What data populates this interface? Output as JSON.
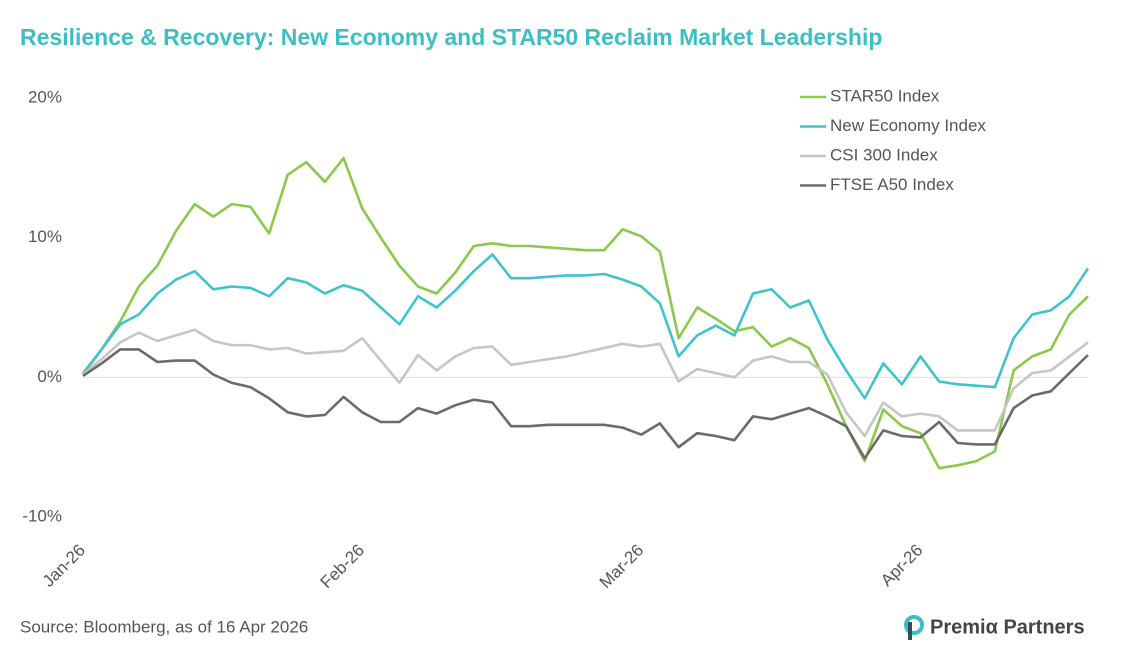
{
  "chart_data": {
    "type": "line",
    "title": "Resilience & Recovery: New Economy and STAR50 Reclaim Market Leadership",
    "categories": [
      "Jan-26",
      null,
      null,
      null,
      null,
      null,
      null,
      null,
      null,
      null,
      null,
      null,
      null,
      null,
      null,
      "Feb-26",
      null,
      null,
      null,
      null,
      null,
      null,
      null,
      null,
      null,
      null,
      null,
      null,
      null,
      null,
      "Mar-26",
      null,
      null,
      null,
      null,
      null,
      null,
      null,
      null,
      null,
      null,
      null,
      null,
      null,
      null,
      "Apr-26",
      null,
      null,
      null,
      null,
      null,
      null,
      null,
      null,
      null
    ],
    "series": [
      {
        "name": "STAR50 Index",
        "color": "#8cc84b",
        "values": [
          0.3,
          2,
          4,
          6.5,
          8,
          10.5,
          12.4,
          11.5,
          12.4,
          12.2,
          10.3,
          14.5,
          15.4,
          14,
          15.7,
          12.1,
          10,
          8,
          6.5,
          6,
          7.5,
          9.4,
          9.6,
          9.4,
          9.4,
          9.3,
          9.2,
          9.1,
          9.1,
          10.6,
          10.1,
          9,
          2.8,
          5,
          4.2,
          3.3,
          3.6,
          2.2,
          2.8,
          2.1,
          -0.5,
          -3.5,
          -6,
          -2.3,
          -3.5,
          -4,
          -6.5,
          -6.3,
          -6,
          -5.3,
          0.5,
          1.5,
          2,
          4.5,
          5.8
        ]
      },
      {
        "name": "New Economy Index",
        "color": "#3fc4cc",
        "values": [
          0.2,
          2,
          3.8,
          4.5,
          6,
          7,
          7.6,
          6.3,
          6.5,
          6.4,
          5.8,
          7.1,
          6.8,
          6,
          6.6,
          6.2,
          5,
          3.8,
          5.8,
          5,
          6.2,
          7.6,
          8.8,
          7.1,
          7.1,
          7.2,
          7.3,
          7.3,
          7.4,
          7,
          6.5,
          5.3,
          1.5,
          3,
          3.7,
          3,
          6,
          6.3,
          5,
          5.5,
          2.7,
          0.5,
          -1.5,
          1,
          -0.5,
          1.5,
          -0.3,
          -0.5,
          -0.6,
          -0.7,
          2.8,
          4.5,
          4.8,
          5.8,
          7.8
        ]
      },
      {
        "name": "CSI 300 Index",
        "color": "#c6c6c6",
        "values": [
          0.2,
          1.3,
          2.5,
          3.2,
          2.6,
          3,
          3.4,
          2.6,
          2.3,
          2.3,
          2,
          2.1,
          1.7,
          1.8,
          1.9,
          2.8,
          1.2,
          -0.4,
          1.6,
          0.5,
          1.5,
          2.1,
          2.2,
          0.9,
          1.1,
          1.3,
          1.5,
          1.8,
          2.1,
          2.4,
          2.2,
          2.4,
          -0.3,
          0.6,
          0.3,
          0,
          1.2,
          1.5,
          1.1,
          1.1,
          0.2,
          -2.5,
          -4.2,
          -1.8,
          -2.8,
          -2.6,
          -2.8,
          -3.8,
          -3.8,
          -3.8,
          -0.8,
          0.3,
          0.5,
          1.5,
          2.5
        ]
      },
      {
        "name": "FTSE A50 Index",
        "color": "#6b6b6b",
        "values": [
          0.1,
          1,
          2,
          2,
          1.1,
          1.2,
          1.2,
          0.2,
          -0.4,
          -0.7,
          -1.5,
          -2.5,
          -2.8,
          -2.7,
          -1.4,
          -2.5,
          -3.2,
          -3.2,
          -2.2,
          -2.6,
          -2,
          -1.6,
          -1.8,
          -3.5,
          -3.5,
          -3.4,
          -3.4,
          -3.4,
          -3.4,
          -3.6,
          -4.1,
          -3.3,
          -5,
          -4,
          -4.2,
          -4.5,
          -2.8,
          -3,
          -2.6,
          -2.2,
          -2.8,
          -3.5,
          -5.8,
          -3.8,
          -4.2,
          -4.3,
          -3.2,
          -4.7,
          -4.8,
          -4.8,
          -2.2,
          -1.3,
          -1,
          0.3,
          1.6
        ]
      }
    ],
    "ylim": [
      -10,
      20
    ],
    "yticks": [
      {
        "value": -10,
        "label": "-10%"
      },
      {
        "value": 0,
        "label": "0%"
      },
      {
        "value": 10,
        "label": "10%"
      },
      {
        "value": 20,
        "label": "20%"
      }
    ],
    "grid": false,
    "legend": "top-right"
  },
  "footer": {
    "source": "Source: Bloomberg, as of 16 Apr 2026",
    "brand": "Premiα Partners"
  }
}
